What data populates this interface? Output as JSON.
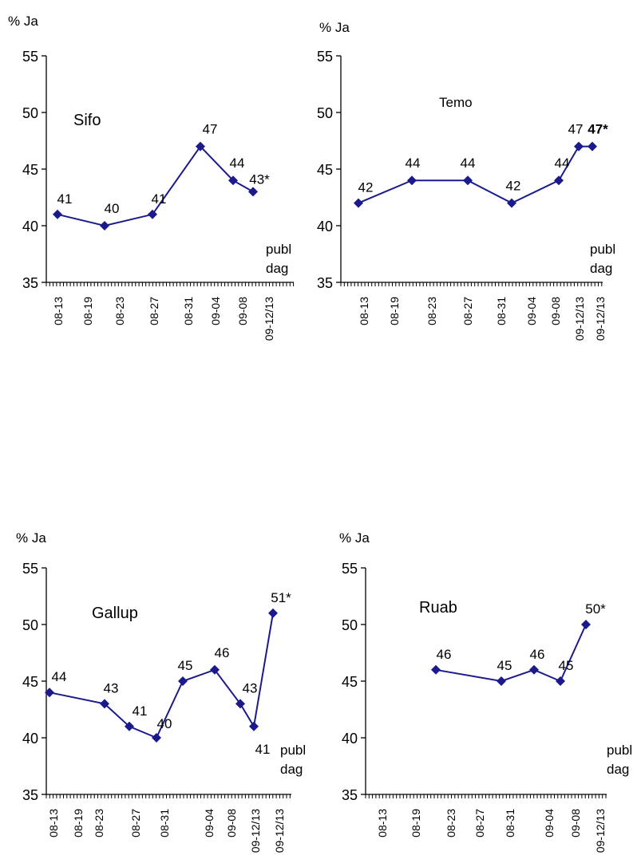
{
  "chart_data": [
    {
      "type": "line",
      "title": "Sifo",
      "ylabel": "% Ja",
      "ylim": [
        35,
        55
      ],
      "yticks": [
        35,
        40,
        45,
        50,
        55
      ],
      "xticks": [
        "08-13",
        "08-19",
        "08-23",
        "08-27",
        "08-31",
        "09-04",
        "09-08",
        "09-12/13"
      ],
      "xlabel_note": [
        "publ",
        "dag"
      ],
      "series": [
        {
          "points": [
            {
              "x": "08-13",
              "y": 41,
              "label": "41"
            },
            {
              "x": "08-22",
              "y": 40,
              "label": "40"
            },
            {
              "x": "08-27",
              "y": 41,
              "label": "41"
            },
            {
              "x": "09-02",
              "y": 47,
              "label": "47"
            },
            {
              "x": "09-08",
              "y": 44,
              "label": "44"
            },
            {
              "x": "09-11",
              "y": 43,
              "label": "43*"
            }
          ]
        }
      ]
    },
    {
      "type": "line",
      "title": "Temo",
      "ylabel": "% Ja",
      "ylim": [
        35,
        55
      ],
      "yticks": [
        35,
        40,
        45,
        50,
        55
      ],
      "xticks": [
        "08-13",
        "08-19",
        "08-23",
        "08-27",
        "08-31",
        "09-04",
        "09-08",
        "09-12/13",
        "09-12/13"
      ],
      "xlabel_note": [
        "publ",
        "dag"
      ],
      "series": [
        {
          "points": [
            {
              "x": "08-13",
              "y": 42,
              "label": "42"
            },
            {
              "x": "08-21",
              "y": 44,
              "label": "44"
            },
            {
              "x": "08-27",
              "y": 44,
              "label": "44"
            },
            {
              "x": "09-02",
              "y": 42,
              "label": "42"
            },
            {
              "x": "09-08",
              "y": 44,
              "label": "44"
            },
            {
              "x": "09-12/13",
              "y": 47,
              "label": "47"
            },
            {
              "x": "09-12/13",
              "y": 47,
              "label": "47*",
              "bold": true
            }
          ]
        }
      ]
    },
    {
      "type": "line",
      "title": "Gallup",
      "ylabel": "% Ja",
      "ylim": [
        35,
        55
      ],
      "yticks": [
        35,
        40,
        45,
        50,
        55
      ],
      "xticks": [
        "08-13",
        "08-19",
        "08-23",
        "08-27",
        "08-31",
        "09-04",
        "09-08",
        "09-12/13",
        "09-12/13"
      ],
      "xlabel_note": [
        "publ",
        "dag"
      ],
      "series": [
        {
          "points": [
            {
              "x": "08-13",
              "y": 44,
              "label": "44"
            },
            {
              "x": "08-23",
              "y": 43,
              "label": "43"
            },
            {
              "x": "08-27",
              "y": 41,
              "label": "41"
            },
            {
              "x": "08-31",
              "y": 40,
              "label": "40"
            },
            {
              "x": "09-02",
              "y": 45,
              "label": "45"
            },
            {
              "x": "09-06",
              "y": 46,
              "label": "46"
            },
            {
              "x": "09-10",
              "y": 43,
              "label": "43"
            },
            {
              "x": "09-12",
              "y": 41,
              "label": "41"
            },
            {
              "x": "09-14",
              "y": 51,
              "label": "51*"
            }
          ]
        }
      ]
    },
    {
      "type": "line",
      "title": "Ruab",
      "ylabel": "% Ja",
      "ylim": [
        35,
        55
      ],
      "yticks": [
        35,
        40,
        45,
        50,
        55
      ],
      "xticks": [
        "08-13",
        "08-19",
        "08-23",
        "08-27",
        "08-31",
        "09-04",
        "09-08",
        "09-12/13"
      ],
      "xlabel_note": [
        "publ",
        "dag"
      ],
      "series": [
        {
          "points": [
            {
              "x": "08-23",
              "y": 46,
              "label": "46"
            },
            {
              "x": "08-31",
              "y": 45,
              "label": "45"
            },
            {
              "x": "09-03",
              "y": 46,
              "label": "46"
            },
            {
              "x": "09-06",
              "y": 45,
              "label": "45"
            },
            {
              "x": "09-09",
              "y": 50,
              "label": "50*"
            }
          ]
        }
      ]
    }
  ],
  "colors": {
    "line": "#1a1a8c",
    "marker": "#1a1a8c",
    "axis": "#000000"
  }
}
